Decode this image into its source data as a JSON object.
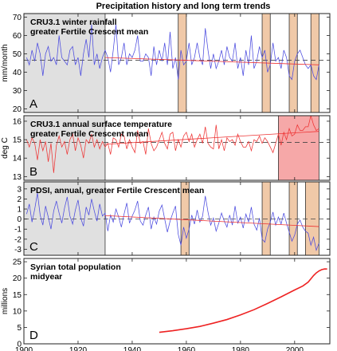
{
  "title": "Precipitation history and long term trends",
  "x_axis": {
    "range": [
      1900,
      2013
    ],
    "ticks": [
      1900,
      1920,
      1940,
      1960,
      1980,
      2000
    ]
  },
  "colors": {
    "rain": "#4a4adf",
    "temp": "#ee3333",
    "pdsi": "#4a4adf",
    "pop": "#ee2222",
    "shade": "#e0e0e0",
    "bar": "#f0c9a8",
    "bar_hot": "#f6a8a8"
  },
  "chart_data": [
    {
      "type": "line",
      "letter": "A",
      "title_lines": [
        "CRU3.1 winter rainfall",
        "greater Fertile Crescent mean"
      ],
      "ylabel": "mm/month",
      "ylim": [
        18,
        72
      ],
      "yticks": [
        20,
        30,
        40,
        50,
        60,
        70
      ],
      "mean": 46.5,
      "trend": [
        [
          1930,
          48.0
        ],
        [
          2009,
          44.0
        ]
      ],
      "shaded_x": [
        1900,
        1930
      ],
      "bars": [
        [
          1957,
          1960
        ],
        [
          1988,
          1991
        ],
        [
          1998,
          2001
        ],
        [
          2006,
          2009
        ]
      ],
      "series": [
        {
          "x": [
            1901,
            1902,
            1903,
            1904,
            1905,
            1906,
            1907,
            1908,
            1909,
            1910,
            1911,
            1912,
            1913,
            1914,
            1915,
            1916,
            1917,
            1918,
            1919,
            1920,
            1921,
            1922,
            1923,
            1924,
            1925,
            1926,
            1927,
            1928,
            1929,
            1930,
            1931,
            1932,
            1933,
            1934,
            1935,
            1936,
            1937,
            1938,
            1939,
            1940,
            1941,
            1942,
            1943,
            1944,
            1945,
            1946,
            1947,
            1948,
            1949,
            1950,
            1951,
            1952,
            1953,
            1954,
            1955,
            1956,
            1957,
            1958,
            1959,
            1960,
            1961,
            1962,
            1963,
            1964,
            1965,
            1966,
            1967,
            1968,
            1969,
            1970,
            1971,
            1972,
            1973,
            1974,
            1975,
            1976,
            1977,
            1978,
            1979,
            1980,
            1981,
            1982,
            1983,
            1984,
            1985,
            1986,
            1987,
            1988,
            1989,
            1990,
            1991,
            1992,
            1993,
            1994,
            1995,
            1996,
            1997,
            1998,
            1999,
            2000,
            2001,
            2002,
            2003,
            2004,
            2005,
            2006,
            2007,
            2008,
            2009
          ],
          "y": [
            48,
            44,
            52,
            46,
            56,
            50,
            38,
            50,
            54,
            46,
            48,
            44,
            60,
            48,
            46,
            44,
            52,
            54,
            44,
            48,
            38,
            50,
            58,
            48,
            66,
            44,
            50,
            42,
            48,
            52,
            48,
            40,
            52,
            66,
            44,
            48,
            56,
            44,
            50,
            48,
            52,
            60,
            46,
            46,
            50,
            48,
            38,
            54,
            44,
            52,
            46,
            56,
            44,
            62,
            42,
            48,
            36,
            52,
            44,
            46,
            56,
            44,
            48,
            56,
            48,
            44,
            64,
            52,
            42,
            50,
            42,
            46,
            52,
            44,
            54,
            48,
            46,
            56,
            42,
            48,
            38,
            52,
            44,
            60,
            42,
            46,
            54,
            48,
            52,
            40,
            44,
            56,
            46,
            48,
            42,
            52,
            48,
            38,
            36,
            46,
            50,
            52,
            48,
            44,
            42,
            44,
            38,
            36,
            44
          ]
        }
      ]
    },
    {
      "type": "line",
      "letter": "B",
      "title_lines": [
        "CRU3.1 annual surface temperature",
        "greater Fertile Crescent mean"
      ],
      "ylabel": "deg C",
      "ylim": [
        12.8,
        16.3
      ],
      "yticks": [
        13,
        14,
        15,
        16
      ],
      "mean": 14.85,
      "trend": [
        [
          1930,
          14.75
        ],
        [
          2009,
          15.45
        ]
      ],
      "shaded_x": [
        1900,
        1930
      ],
      "bars": [
        [
          1994,
          2009
        ]
      ],
      "series": [
        {
          "x": [
            1901,
            1902,
            1903,
            1904,
            1905,
            1906,
            1907,
            1908,
            1909,
            1910,
            1911,
            1912,
            1913,
            1914,
            1915,
            1916,
            1917,
            1918,
            1919,
            1920,
            1921,
            1922,
            1923,
            1924,
            1925,
            1926,
            1927,
            1928,
            1929,
            1930,
            1931,
            1932,
            1933,
            1934,
            1935,
            1936,
            1937,
            1938,
            1939,
            1940,
            1941,
            1942,
            1943,
            1944,
            1945,
            1946,
            1947,
            1948,
            1949,
            1950,
            1951,
            1952,
            1953,
            1954,
            1955,
            1956,
            1957,
            1958,
            1959,
            1960,
            1961,
            1962,
            1963,
            1964,
            1965,
            1966,
            1967,
            1968,
            1969,
            1970,
            1971,
            1972,
            1973,
            1974,
            1975,
            1976,
            1977,
            1978,
            1979,
            1980,
            1981,
            1982,
            1983,
            1984,
            1985,
            1986,
            1987,
            1988,
            1989,
            1990,
            1991,
            1992,
            1993,
            1994,
            1995,
            1996,
            1997,
            1998,
            1999,
            2000,
            2001,
            2002,
            2003,
            2004,
            2005,
            2006,
            2007,
            2008,
            2009
          ],
          "y": [
            15.0,
            14.6,
            15.1,
            14.8,
            13.9,
            15.0,
            14.4,
            14.9,
            13.8,
            14.8,
            13.2,
            14.7,
            15.2,
            14.6,
            14.9,
            14.2,
            15.0,
            15.3,
            14.4,
            15.1,
            14.7,
            14.0,
            15.0,
            14.8,
            15.3,
            14.6,
            15.0,
            14.5,
            14.9,
            14.6,
            14.8,
            14.2,
            15.1,
            15.0,
            14.6,
            15.3,
            15.2,
            14.5,
            15.0,
            14.6,
            14.3,
            15.5,
            14.8,
            14.9,
            14.2,
            15.6,
            14.8,
            14.4,
            14.6,
            15.0,
            15.4,
            14.8,
            14.5,
            15.3,
            15.4,
            14.4,
            15.0,
            14.6,
            15.2,
            15.4,
            14.9,
            15.3,
            14.6,
            15.0,
            15.3,
            14.8,
            15.7,
            14.8,
            14.6,
            14.5,
            15.8,
            14.5,
            15.0,
            14.4,
            15.1,
            14.9,
            15.0,
            14.7,
            15.3,
            14.9,
            14.6,
            14.6,
            14.9,
            14.4,
            15.0,
            14.9,
            15.2,
            14.8,
            15.1,
            14.9,
            14.6,
            14.3,
            14.8,
            15.3,
            14.7,
            15.4,
            15.0,
            15.6,
            15.2,
            15.3,
            15.8,
            15.5,
            15.5,
            15.7,
            15.7,
            16.3,
            15.8,
            15.5,
            15.6
          ]
        }
      ]
    },
    {
      "type": "line",
      "letter": "C",
      "title_lines": [
        "PDSI, annual, greater Fertile Crescent mean"
      ],
      "ylabel": "",
      "ylim": [
        -3.6,
        3.7
      ],
      "yticks": [
        -3,
        -2,
        -1,
        0,
        1,
        2,
        3
      ],
      "mean": 0,
      "trend": [
        [
          1930,
          0.35
        ],
        [
          2009,
          -0.75
        ]
      ],
      "shaded_x": [
        1900,
        1930
      ],
      "bars": [
        [
          1958,
          1961
        ],
        [
          1988,
          1991
        ],
        [
          1998,
          2001
        ],
        [
          2004,
          2009
        ]
      ],
      "series": [
        {
          "x": [
            1901,
            1902,
            1903,
            1904,
            1905,
            1906,
            1907,
            1908,
            1909,
            1910,
            1911,
            1912,
            1913,
            1914,
            1915,
            1916,
            1917,
            1918,
            1919,
            1920,
            1921,
            1922,
            1923,
            1924,
            1925,
            1926,
            1927,
            1928,
            1929,
            1930,
            1931,
            1932,
            1933,
            1934,
            1935,
            1936,
            1937,
            1938,
            1939,
            1940,
            1941,
            1942,
            1943,
            1944,
            1945,
            1946,
            1947,
            1948,
            1949,
            1950,
            1951,
            1952,
            1953,
            1954,
            1955,
            1956,
            1957,
            1958,
            1959,
            1960,
            1961,
            1962,
            1963,
            1964,
            1965,
            1966,
            1967,
            1968,
            1969,
            1970,
            1971,
            1972,
            1973,
            1974,
            1975,
            1976,
            1977,
            1978,
            1979,
            1980,
            1981,
            1982,
            1983,
            1984,
            1985,
            1986,
            1987,
            1988,
            1989,
            1990,
            1991,
            1992,
            1993,
            1994,
            1995,
            1996,
            1997,
            1998,
            1999,
            2000,
            2001,
            2002,
            2003,
            2004,
            2005,
            2006,
            2007,
            2008,
            2009
          ],
          "y": [
            0.5,
            1.5,
            -0.3,
            1.0,
            2.6,
            0.4,
            -0.6,
            1.3,
            0.2,
            -1.0,
            0.8,
            1.8,
            0.6,
            -0.4,
            1.1,
            2.2,
            0.3,
            -0.5,
            0.9,
            1.9,
            0.1,
            -0.7,
            1.2,
            0.4,
            2.0,
            0.8,
            -0.2,
            1.5,
            0.3,
            0.6,
            -1.2,
            0.4,
            -0.3,
            1.0,
            0.2,
            -0.8,
            0.5,
            1.6,
            -0.4,
            0.3,
            0.9,
            1.8,
            -0.2,
            -0.6,
            0.4,
            1.2,
            -1.0,
            0.2,
            -0.5,
            0.8,
            1.4,
            0.0,
            -1.3,
            -0.2,
            0.6,
            1.3,
            -1.5,
            -2.6,
            -0.8,
            -1.9,
            -1.0,
            0.4,
            -0.5,
            0.9,
            -0.3,
            0.3,
            2.3,
            0.7,
            -0.6,
            0.1,
            -1.2,
            -0.4,
            0.6,
            -0.2,
            -0.8,
            0.4,
            -0.6,
            1.3,
            -0.4,
            0.2,
            -0.9,
            0.5,
            -0.3,
            1.2,
            -0.5,
            -1.1,
            0.1,
            -2.0,
            -2.3,
            -1.0,
            -0.3,
            0.7,
            -0.6,
            0.2,
            -0.5,
            0.6,
            -0.4,
            -1.3,
            -2.2,
            -1.6,
            -0.5,
            -0.1,
            -0.8,
            -1.2,
            -1.4,
            -2.6,
            -1.8,
            -3.1,
            -2.4
          ]
        }
      ]
    },
    {
      "type": "line",
      "letter": "D",
      "title_lines": [
        "Syrian total population",
        "midyear"
      ],
      "ylabel": "millions",
      "ylim": [
        0,
        26
      ],
      "yticks": [
        0,
        5,
        10,
        15,
        20,
        25
      ],
      "series": [
        {
          "x": [
            1950,
            1955,
            1960,
            1965,
            1970,
            1975,
            1980,
            1985,
            1990,
            1995,
            2000,
            2003,
            2005,
            2007,
            2008,
            2009,
            2010,
            2011,
            2012
          ],
          "y": [
            3.5,
            4.0,
            4.6,
            5.3,
            6.3,
            7.4,
            8.8,
            10.4,
            12.3,
            14.3,
            16.4,
            17.6,
            18.8,
            20.8,
            21.6,
            22.2,
            22.6,
            22.8,
            22.8
          ]
        }
      ]
    }
  ]
}
